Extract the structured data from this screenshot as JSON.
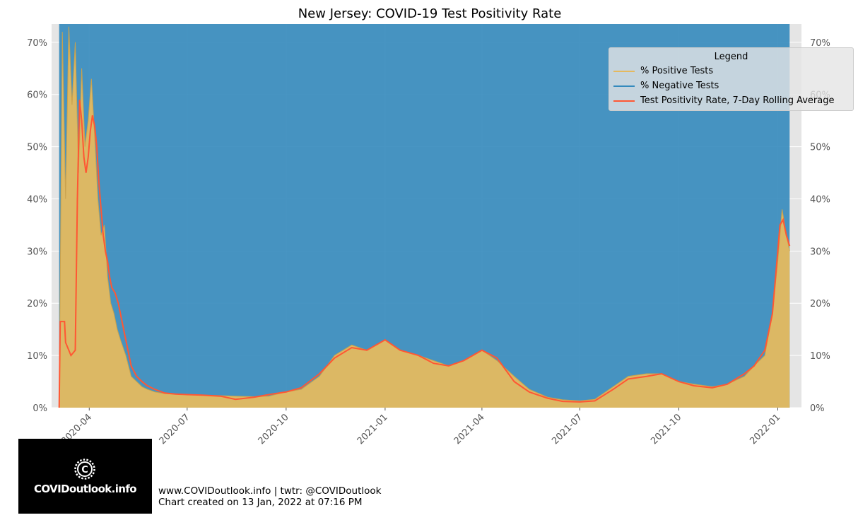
{
  "chart_data": {
    "type": "area",
    "title": "New Jersey: COVID-19 Test Positivity Rate",
    "xlabel": "",
    "ylabel": "",
    "ylim": [
      0,
      73.5
    ],
    "y_ticks": [
      "0%",
      "10%",
      "20%",
      "30%",
      "40%",
      "50%",
      "60%",
      "70%"
    ],
    "y_tick_values": [
      0,
      10,
      20,
      30,
      40,
      50,
      60,
      70
    ],
    "x_ticks": [
      "2020-04",
      "2020-07",
      "2020-10",
      "2021-01",
      "2021-04",
      "2021-07",
      "2021-10",
      "2022-01"
    ],
    "x_tick_dates": [
      "2020-04-01",
      "2020-07-01",
      "2020-10-01",
      "2021-01-01",
      "2021-04-01",
      "2021-07-01",
      "2021-10-01",
      "2022-01-01"
    ],
    "xlim": [
      "2020-02-26",
      "2022-01-23"
    ],
    "grid": true,
    "legend_position": "top-right",
    "legend_title": "Legend",
    "series": [
      {
        "name": "% Positive Tests",
        "color": "#E5B95F",
        "style": "area",
        "dates": [
          "2020-03-04",
          "2020-03-07",
          "2020-03-10",
          "2020-03-13",
          "2020-03-16",
          "2020-03-19",
          "2020-03-22",
          "2020-03-25",
          "2020-03-28",
          "2020-03-31",
          "2020-04-03",
          "2020-04-06",
          "2020-04-09",
          "2020-04-12",
          "2020-04-15",
          "2020-04-18",
          "2020-04-21",
          "2020-04-24",
          "2020-04-27",
          "2020-04-30",
          "2020-05-05",
          "2020-05-10",
          "2020-05-15",
          "2020-05-20",
          "2020-05-25",
          "2020-06-01",
          "2020-06-10",
          "2020-06-20",
          "2020-07-01",
          "2020-07-15",
          "2020-08-01",
          "2020-08-15",
          "2020-09-01",
          "2020-09-15",
          "2020-10-01",
          "2020-10-15",
          "2020-11-01",
          "2020-11-15",
          "2020-12-01",
          "2020-12-15",
          "2021-01-01",
          "2021-01-15",
          "2021-02-01",
          "2021-02-15",
          "2021-03-01",
          "2021-03-15",
          "2021-04-01",
          "2021-04-15",
          "2021-05-01",
          "2021-05-15",
          "2021-06-01",
          "2021-06-15",
          "2021-07-01",
          "2021-07-15",
          "2021-08-01",
          "2021-08-15",
          "2021-09-01",
          "2021-09-15",
          "2021-10-01",
          "2021-10-15",
          "2021-11-01",
          "2021-11-15",
          "2021-12-01",
          "2021-12-10",
          "2021-12-20",
          "2021-12-27",
          "2022-01-01",
          "2022-01-05",
          "2022-01-09",
          "2022-01-12"
        ],
        "values": [
          0,
          72,
          40,
          73,
          58,
          70,
          45,
          65,
          50,
          55,
          63,
          52,
          40,
          33,
          35,
          25,
          20,
          18,
          15,
          13,
          10,
          6,
          5,
          4,
          3.5,
          3,
          2.7,
          2.6,
          2.5,
          2.4,
          2.3,
          2.2,
          2.1,
          2.2,
          3.0,
          3.5,
          6,
          10,
          12,
          11,
          13,
          11,
          10,
          9,
          8,
          9,
          11,
          9,
          6,
          3.5,
          2,
          1.5,
          1.3,
          1.6,
          4,
          6,
          6.5,
          6.5,
          5,
          4.5,
          4,
          4.5,
          6,
          8,
          10,
          18,
          28,
          38,
          33,
          30
        ]
      },
      {
        "name": "% Negative Tests",
        "color": "#348ABD",
        "style": "area",
        "fill": "100% minus % Positive Tests"
      },
      {
        "name": "Test Positivity Rate, 7-Day Rolling Average",
        "color": "#FF5733",
        "style": "line",
        "dates": [
          "2020-03-04",
          "2020-03-05",
          "2020-03-09",
          "2020-03-10",
          "2020-03-15",
          "2020-03-19",
          "2020-03-21",
          "2020-03-23",
          "2020-03-25",
          "2020-03-27",
          "2020-03-29",
          "2020-03-31",
          "2020-04-02",
          "2020-04-04",
          "2020-04-06",
          "2020-04-08",
          "2020-04-10",
          "2020-04-12",
          "2020-04-14",
          "2020-04-16",
          "2020-04-18",
          "2020-04-20",
          "2020-04-22",
          "2020-04-25",
          "2020-04-28",
          "2020-05-01",
          "2020-05-05",
          "2020-05-10",
          "2020-05-15",
          "2020-05-20",
          "2020-05-25",
          "2020-06-01",
          "2020-06-10",
          "2020-06-20",
          "2020-07-01",
          "2020-07-15",
          "2020-08-01",
          "2020-08-15",
          "2020-09-01",
          "2020-09-15",
          "2020-10-01",
          "2020-10-15",
          "2020-11-01",
          "2020-11-15",
          "2020-12-01",
          "2020-12-15",
          "2021-01-01",
          "2021-01-15",
          "2021-02-01",
          "2021-02-15",
          "2021-03-01",
          "2021-03-15",
          "2021-04-01",
          "2021-04-15",
          "2021-05-01",
          "2021-05-15",
          "2021-06-01",
          "2021-06-15",
          "2021-07-01",
          "2021-07-15",
          "2021-08-01",
          "2021-08-15",
          "2021-09-01",
          "2021-09-15",
          "2021-10-01",
          "2021-10-15",
          "2021-11-01",
          "2021-11-15",
          "2021-12-01",
          "2021-12-10",
          "2021-12-20",
          "2021-12-27",
          "2022-01-01",
          "2022-01-03",
          "2022-01-06",
          "2022-01-09",
          "2022-01-12"
        ],
        "values": [
          0,
          16.5,
          16.5,
          12.5,
          10,
          11,
          40,
          59,
          55,
          48,
          45,
          48,
          53,
          56,
          54,
          50,
          43,
          38,
          33,
          30,
          28,
          25,
          23,
          22,
          20,
          17,
          13,
          8,
          6,
          5,
          4.2,
          3.5,
          2.8,
          2.6,
          2.5,
          2.4,
          2.2,
          1.6,
          2.0,
          2.5,
          3.0,
          3.8,
          6.5,
          9.5,
          11.5,
          11,
          13,
          11,
          10,
          8.5,
          8,
          9,
          11,
          9.5,
          5,
          3,
          1.8,
          1.2,
          1.1,
          1.3,
          3.5,
          5.5,
          6,
          6.5,
          5,
          4.2,
          3.8,
          4.5,
          6.5,
          8,
          11,
          18,
          30,
          35,
          36,
          33,
          31
        ]
      }
    ]
  },
  "branding": {
    "logo_text": "COVIDoutlook.info",
    "footer_line1": "www.COVIDoutlook.info | twtr: @COVIDoutlook",
    "footer_line2": "Chart created on 13 Jan, 2022 at 07:16 PM"
  }
}
